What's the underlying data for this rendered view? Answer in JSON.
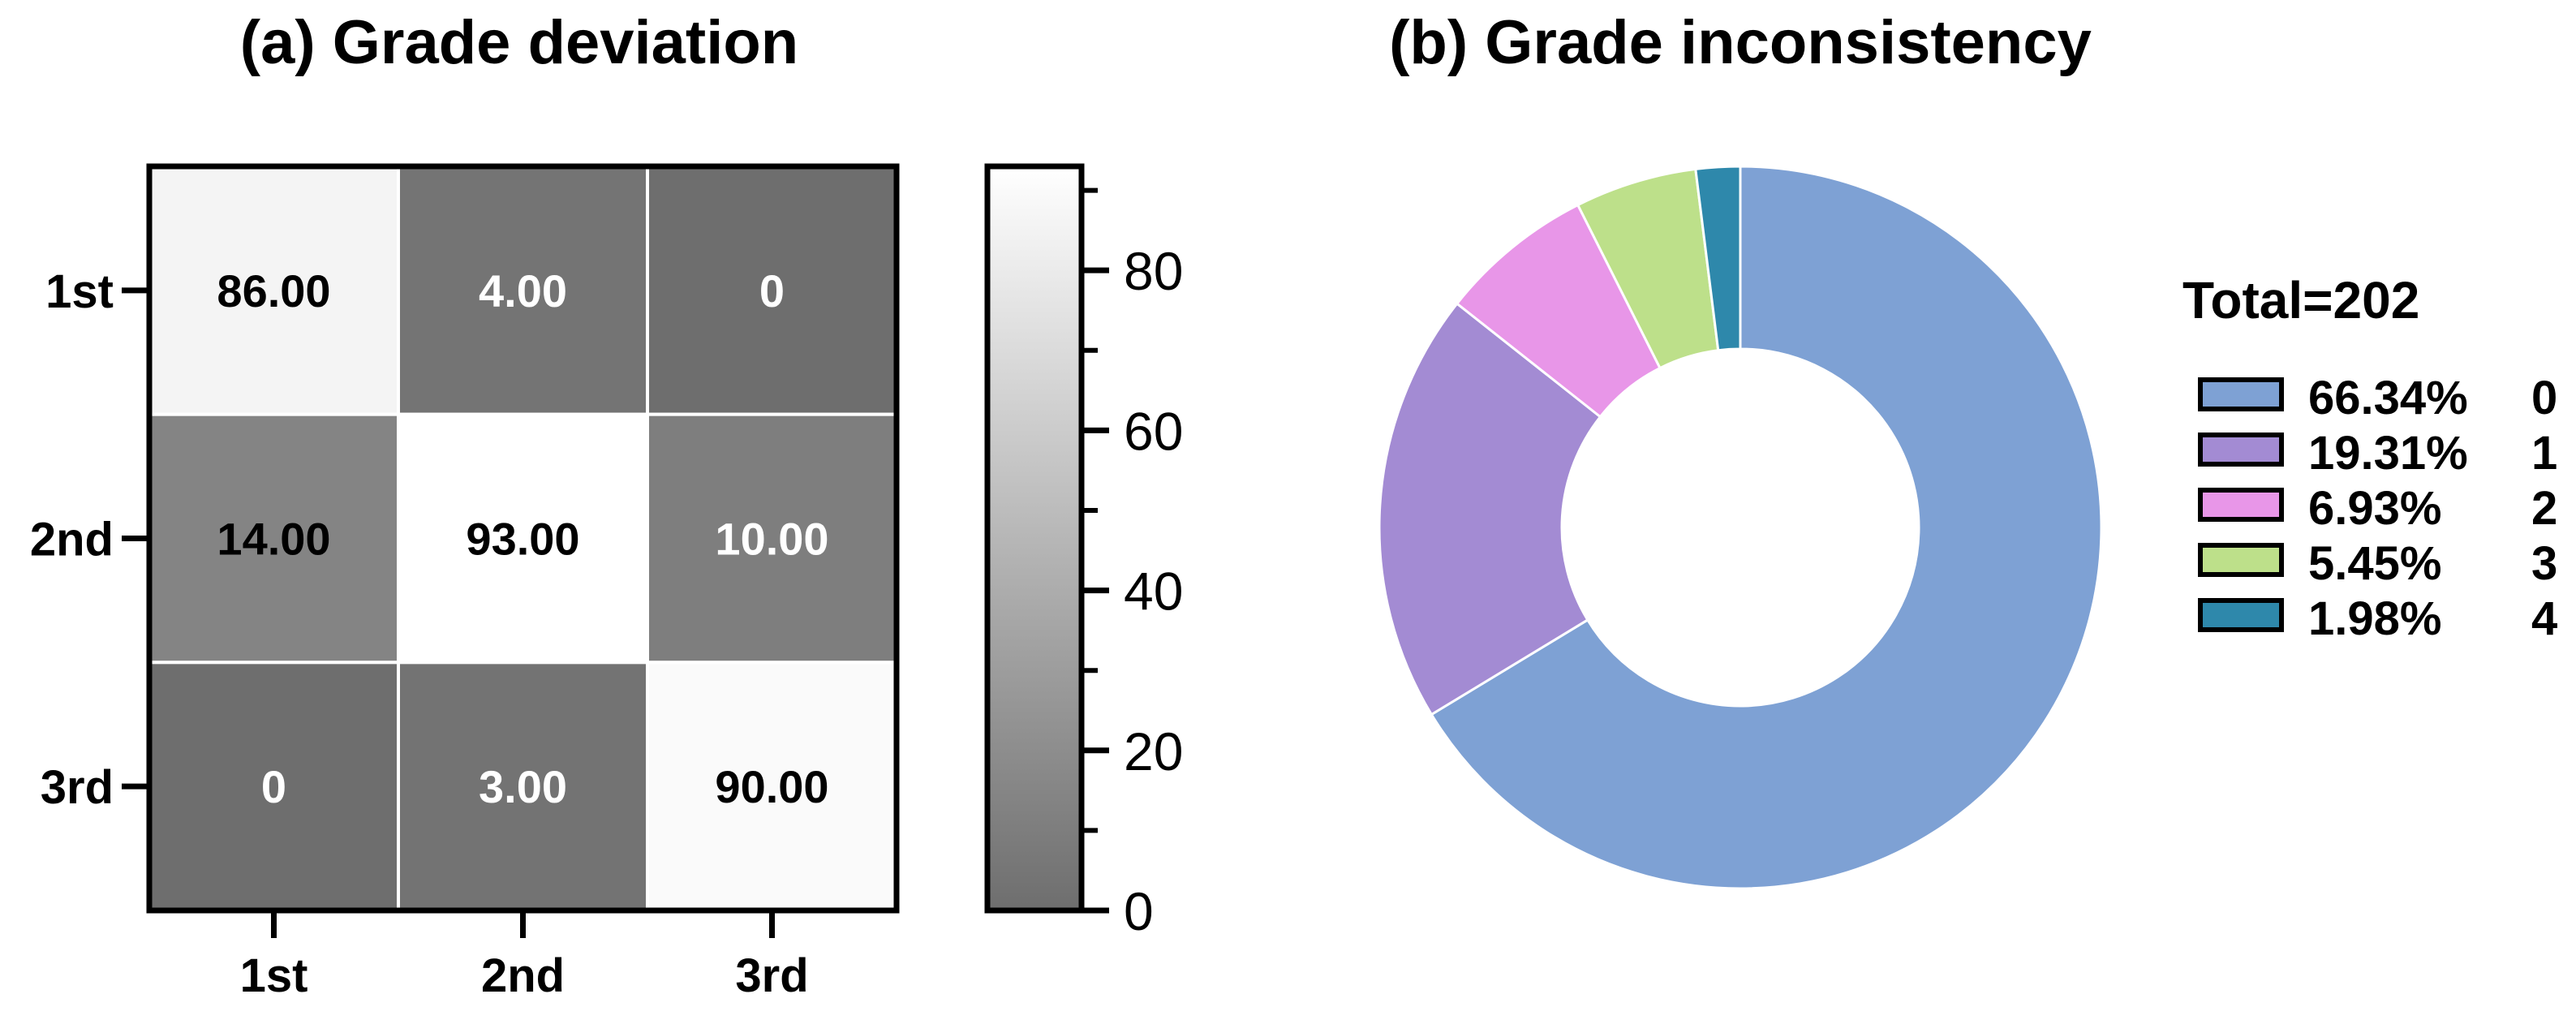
{
  "chart_data": [
    {
      "type": "heatmap",
      "title": "(a) Grade deviation",
      "row_labels": [
        "1st",
        "2nd",
        "3rd"
      ],
      "col_labels": [
        "1st",
        "2nd",
        "3rd"
      ],
      "values": [
        [
          86,
          4,
          0
        ],
        [
          14,
          93,
          10
        ],
        [
          0,
          3,
          90
        ]
      ],
      "value_labels": [
        [
          "86.00",
          "4.00",
          "0"
        ],
        [
          "14.00",
          "93.00",
          "10.00"
        ],
        [
          "0",
          "3.00",
          "90.00"
        ]
      ],
      "colorbar": {
        "range": [
          0,
          93
        ],
        "ticks": [
          0,
          20,
          40,
          60,
          80
        ],
        "tick_labels": [
          "0",
          "20",
          "40",
          "60",
          "80"
        ],
        "color_low": "#6e6e6e",
        "color_high": "#ffffff"
      }
    },
    {
      "type": "pie",
      "style": "donut",
      "title": "(b) Grade inconsistency",
      "legend_title": "Total=202",
      "legend_position": "right",
      "slices": [
        {
          "pct_label": "66.34%",
          "name": "0",
          "value": 66.34,
          "color": "#7ea1d4"
        },
        {
          "pct_label": "19.31%",
          "name": "1",
          "value": 19.31,
          "color": "#a38bd3"
        },
        {
          "pct_label": "6.93%",
          "name": "2",
          "value": 6.93,
          "color": "#e896e8"
        },
        {
          "pct_label": "5.45%",
          "name": "3",
          "value": 5.45,
          "color": "#bde08a"
        },
        {
          "pct_label": "1.98%",
          "name": "4",
          "value": 1.98,
          "color": "#2e88ab"
        }
      ]
    }
  ]
}
